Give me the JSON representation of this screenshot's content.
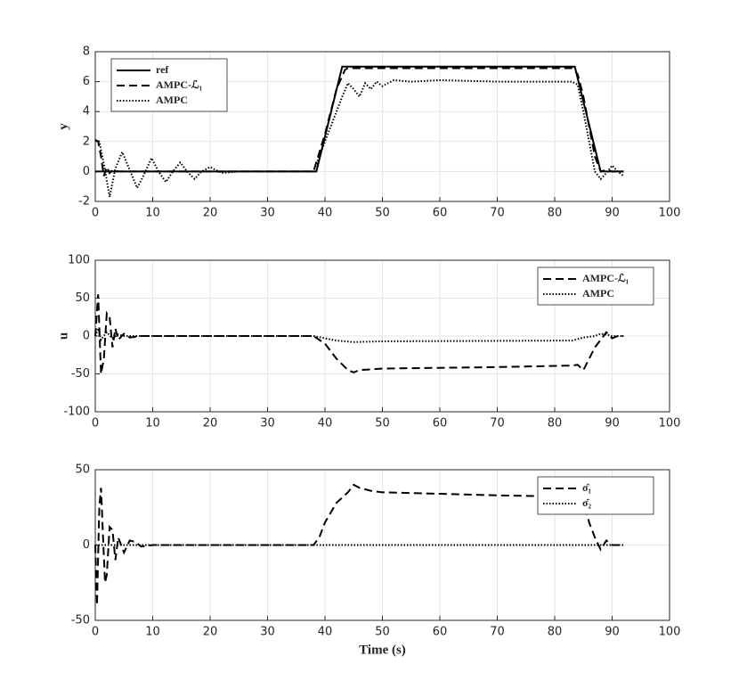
{
  "chart_data": [
    {
      "type": "line",
      "ylabel": "y",
      "xlim": [
        0,
        100
      ],
      "xticks": [
        0,
        10,
        20,
        30,
        40,
        50,
        60,
        70,
        80,
        90,
        100
      ],
      "ylim": [
        -2,
        8
      ],
      "yticks": [
        -2,
        0,
        2,
        4,
        6,
        8
      ],
      "grid": true,
      "legend": "northwest",
      "series": [
        {
          "name": "ref",
          "color": "#000000",
          "dash": "solid",
          "x": [
            0,
            38.5,
            43,
            83.5,
            88,
            92
          ],
          "values": [
            0,
            0,
            7,
            7,
            0,
            0
          ]
        },
        {
          "name": "AMPC-ℒ₁",
          "color": "#000000",
          "dash": "dashed",
          "x": [
            0,
            0.5,
            1,
            1.5,
            2,
            2.5,
            3,
            4,
            5,
            38,
            40,
            42,
            43.5,
            44,
            83,
            84,
            85,
            86,
            87,
            88,
            89,
            90,
            91,
            92
          ],
          "values": [
            2.1,
            2,
            1,
            -0.3,
            0.3,
            -0.1,
            0.1,
            0,
            0,
            0,
            2.5,
            5.5,
            6.8,
            6.9,
            6.9,
            6.5,
            5,
            3,
            1,
            0,
            0.1,
            0,
            0,
            0
          ]
        },
        {
          "name": "AMPC",
          "color": "#000000",
          "dash": "dotted",
          "x": [
            0,
            0.7,
            1.5,
            2.5,
            3.5,
            4.7,
            6,
            7.3,
            8.5,
            9.8,
            11,
            12.3,
            13.5,
            14.8,
            16,
            17.3,
            18.5,
            20,
            22,
            25,
            38,
            39.5,
            41,
            42,
            43,
            44,
            45,
            46,
            47,
            48,
            49,
            50,
            52,
            55,
            60,
            70,
            83,
            84,
            85,
            86,
            87,
            88,
            89,
            90,
            91,
            92
          ],
          "values": [
            2.1,
            2,
            0.5,
            -1.7,
            0.2,
            1.3,
            0.1,
            -1.1,
            -0.2,
            0.9,
            0,
            -0.7,
            0,
            0.6,
            0,
            -0.5,
            0,
            0.3,
            -0.1,
            0,
            0,
            1.5,
            3,
            4,
            5,
            5.9,
            5.5,
            5,
            5.9,
            5.5,
            6,
            5.7,
            6.1,
            6,
            6.1,
            6,
            6,
            5.8,
            4,
            2,
            0,
            -0.5,
            -0.1,
            0.4,
            0,
            -0.3
          ]
        }
      ]
    },
    {
      "type": "line",
      "ylabel": "u",
      "xlim": [
        0,
        100
      ],
      "xticks": [
        0,
        10,
        20,
        30,
        40,
        50,
        60,
        70,
        80,
        90,
        100
      ],
      "ylim": [
        -100,
        100
      ],
      "yticks": [
        -100,
        -50,
        0,
        50,
        100
      ],
      "grid": true,
      "legend": "northeast",
      "series": [
        {
          "name": "AMPC-ℒ₁",
          "color": "#000000",
          "dash": "dashed",
          "x": [
            0,
            0.5,
            1,
            1.5,
            2,
            2.5,
            3,
            3.5,
            4,
            5,
            6,
            8,
            10,
            38,
            40,
            42,
            44,
            45,
            46,
            48,
            50,
            60,
            70,
            83,
            84,
            85,
            86,
            87,
            88,
            89,
            90,
            91,
            92
          ],
          "values": [
            0,
            55,
            -50,
            -30,
            30,
            25,
            -15,
            10,
            -5,
            3,
            -2,
            0,
            0,
            0,
            -10,
            -30,
            -45,
            -48,
            -45,
            -44,
            -43,
            -42,
            -41,
            -39,
            -38,
            -45,
            -30,
            -15,
            -5,
            5,
            -3,
            0,
            0
          ]
        },
        {
          "name": "AMPC",
          "color": "#000000",
          "dash": "dotted",
          "x": [
            0,
            0.5,
            1,
            2,
            3,
            4,
            5,
            10,
            38,
            40,
            42,
            45,
            50,
            83,
            85,
            87,
            88,
            89,
            90,
            92
          ],
          "values": [
            0,
            10,
            -5,
            5,
            -3,
            2,
            0,
            0,
            0,
            -3,
            -6,
            -8,
            -7,
            -6,
            -2,
            0,
            3,
            2,
            0,
            0
          ]
        }
      ]
    },
    {
      "type": "line",
      "xlabel": "Time (s)",
      "xlim": [
        0,
        100
      ],
      "xticks": [
        0,
        10,
        20,
        30,
        40,
        50,
        60,
        70,
        80,
        90,
        100
      ],
      "ylim": [
        -50,
        50
      ],
      "yticks": [
        -50,
        0,
        50
      ],
      "grid": true,
      "legend": "northeast",
      "series": [
        {
          "name": "σ̂₁",
          "color": "#000000",
          "dash": "dashed",
          "x": [
            0,
            0.3,
            0.7,
            1,
            1.3,
            1.7,
            2,
            2.5,
            3,
            3.5,
            4,
            5,
            6,
            7,
            8,
            10,
            38,
            39,
            40,
            42,
            44,
            45,
            46,
            48,
            50,
            60,
            70,
            83,
            84,
            85,
            86,
            87,
            88,
            89,
            90,
            91,
            92
          ],
          "values": [
            0,
            -40,
            25,
            38,
            10,
            -25,
            -20,
            12,
            10,
            -10,
            5,
            -5,
            3,
            2,
            -1,
            0,
            0,
            5,
            15,
            28,
            35,
            40,
            38,
            36,
            35,
            34,
            33,
            32,
            25,
            30,
            15,
            5,
            -3,
            3,
            0,
            0,
            0
          ]
        },
        {
          "name": "σ̂₂",
          "color": "#000000",
          "dash": "dotted",
          "x": [
            0,
            92
          ],
          "values": [
            0,
            0
          ]
        }
      ]
    }
  ]
}
